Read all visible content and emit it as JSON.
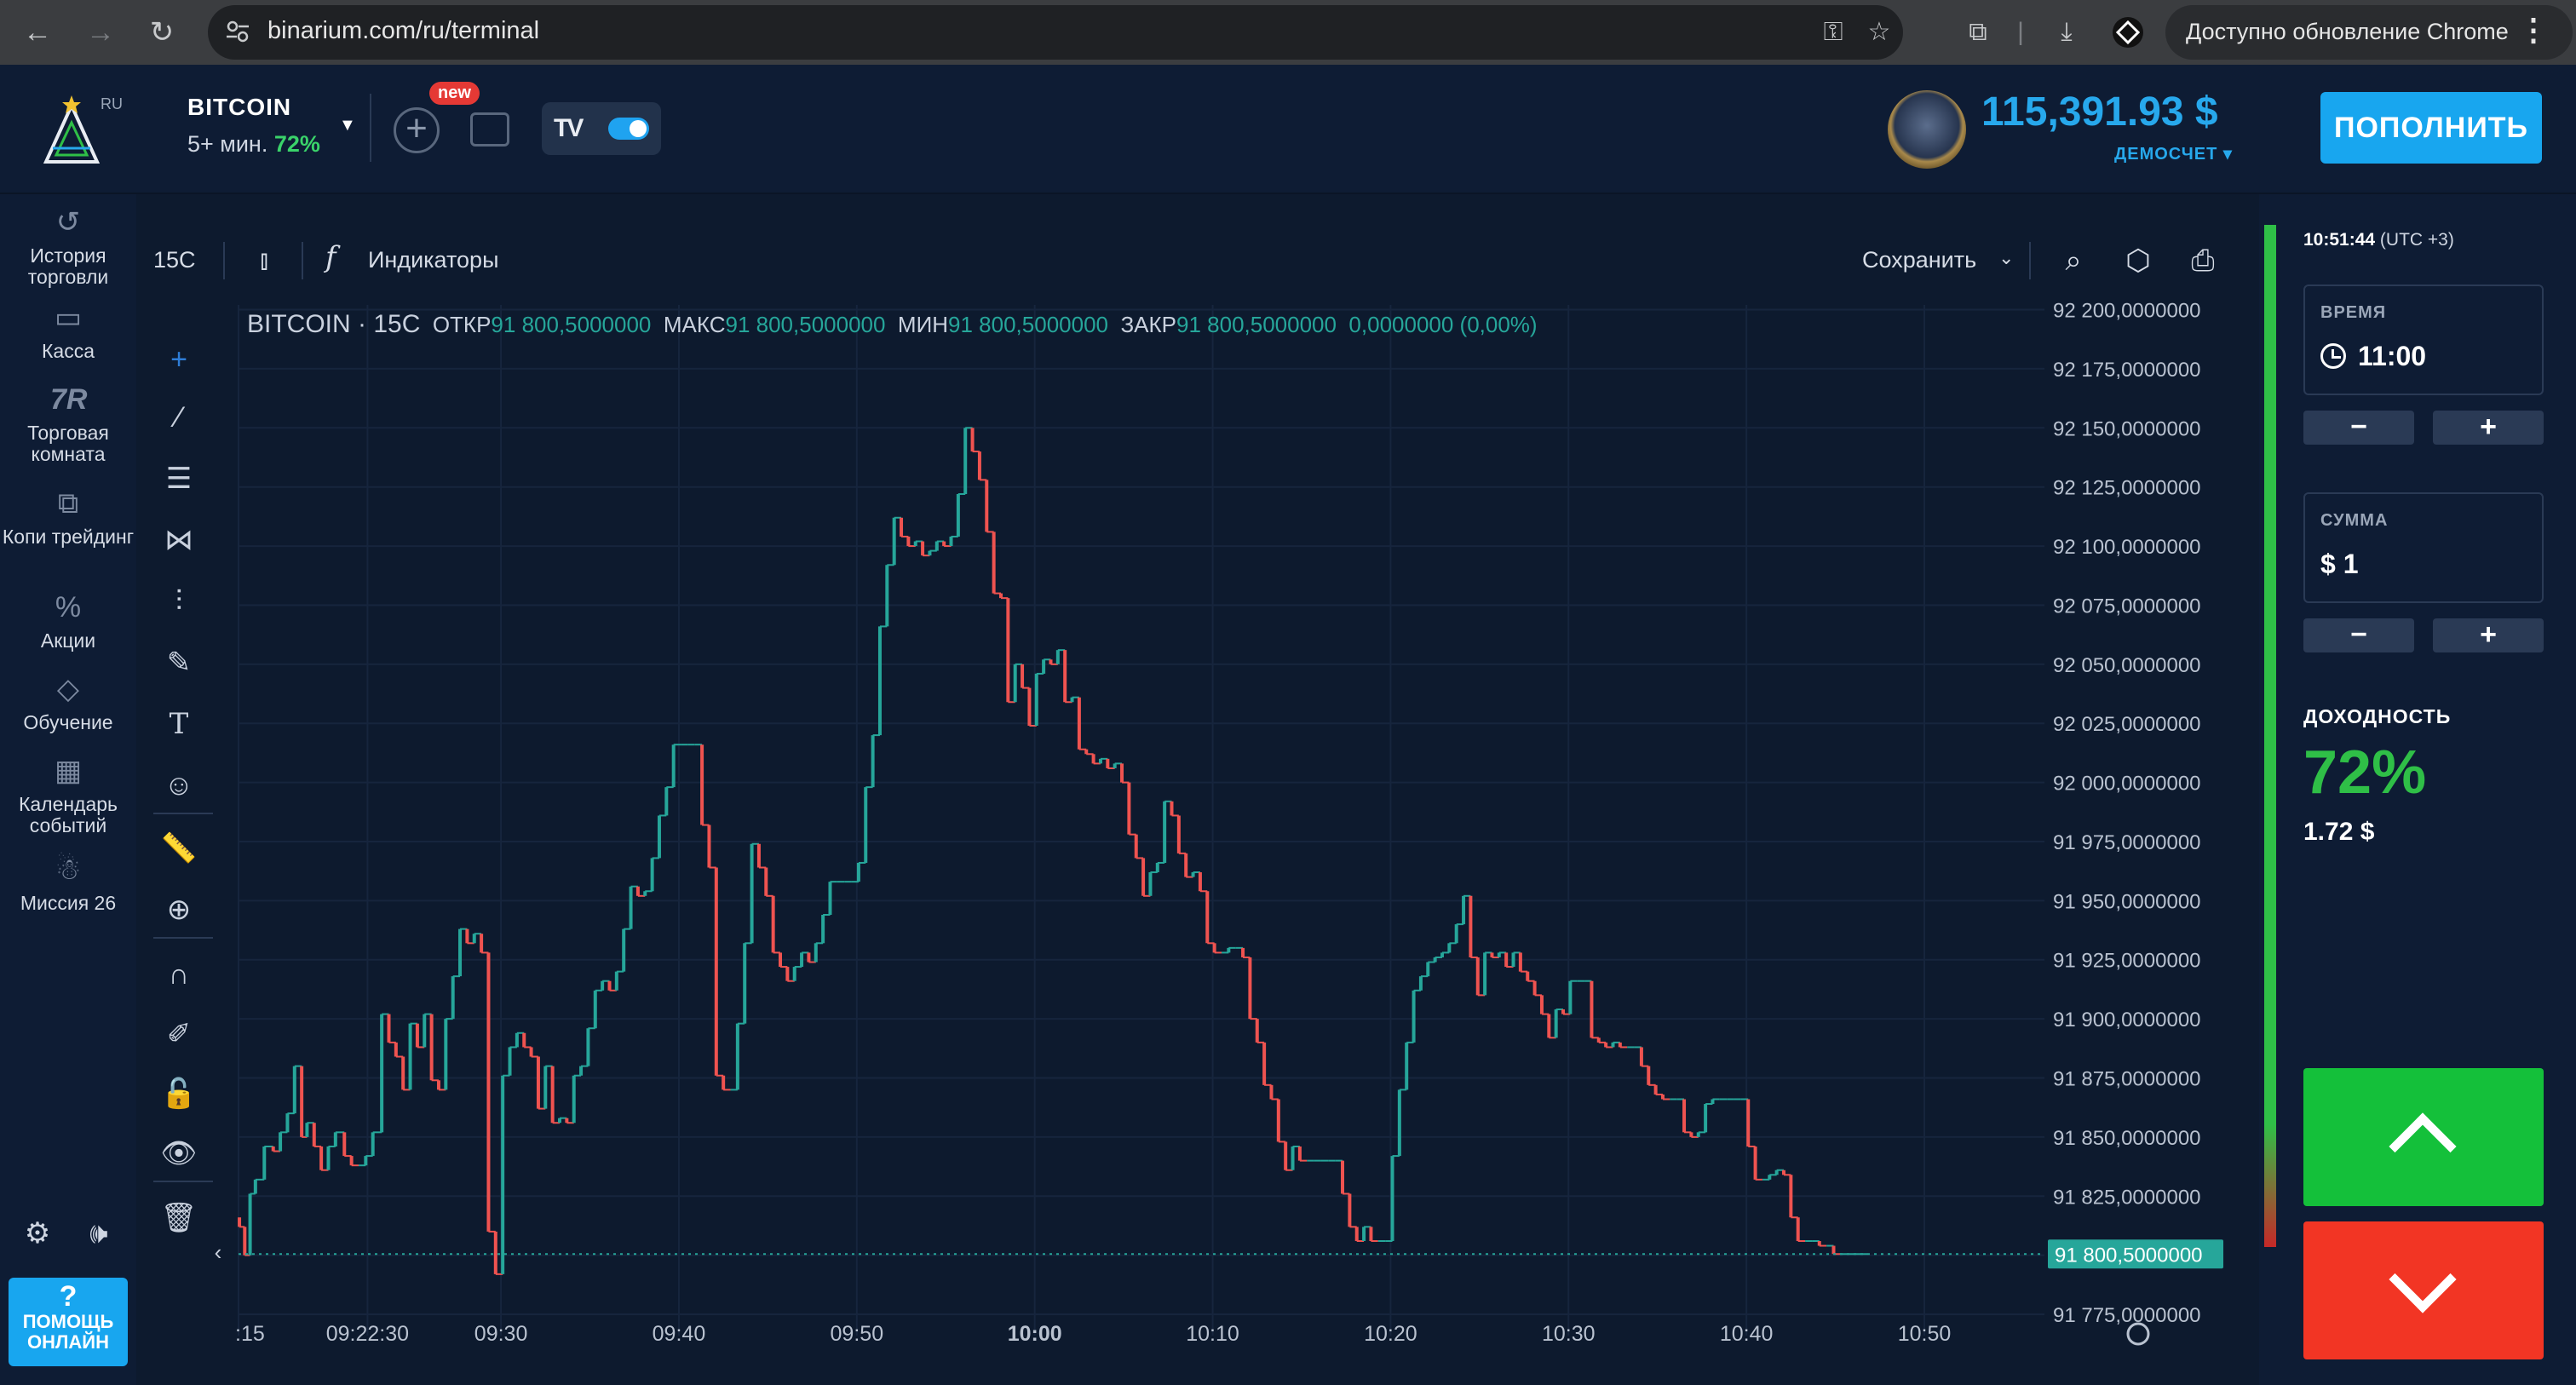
{
  "browser": {
    "url": "binarium.com/ru/terminal",
    "update_label": "Доступно обновление Chrome"
  },
  "header": {
    "lang": "RU",
    "asset_name": "BITCOIN",
    "asset_term": "5+ мин.",
    "asset_payout": "72%",
    "new_badge": "new",
    "balance": "115,391.93 $",
    "account_type": "ДЕМОСЧЕТ ▾",
    "deposit_label": "ПОПОЛНИТЬ"
  },
  "sidebar": {
    "items": [
      {
        "label": "История торговли",
        "icon": "history-icon"
      },
      {
        "label": "Касса",
        "icon": "wallet-icon"
      },
      {
        "label": "Торговая комната",
        "icon": "trading-room-icon"
      },
      {
        "label": "Копи трейдинг",
        "icon": "copy-trading-icon"
      },
      {
        "label": "Акции",
        "icon": "promo-icon"
      },
      {
        "label": "Обучение",
        "icon": "education-icon"
      },
      {
        "label": "Календарь событий",
        "icon": "calendar-icon"
      },
      {
        "label": "Миссия 26",
        "icon": "mission-icon"
      }
    ],
    "help_q": "?",
    "help_label": "ПОМОЩЬ ОНЛАЙН"
  },
  "chart_toolbar": {
    "timeframe": "15С",
    "indicators_label": "Индикаторы",
    "save_label": "Сохранить"
  },
  "legend": {
    "title": "BITCOIN · 15С",
    "open_key": "ОТКР",
    "open": "91 800,5000000",
    "high_key": "МАКС",
    "high": "91 800,5000000",
    "low_key": "МИН",
    "low": "91 800,5000000",
    "close_key": "ЗАКР",
    "close": "91 800,5000000",
    "change": "0,0000000 (0,00%)"
  },
  "chart_data": {
    "type": "candlestick",
    "title": "BITCOIN · 15С",
    "y_ticks": [
      "92 200,0000000",
      "92 175,0000000",
      "92 150,0000000",
      "92 125,0000000",
      "92 100,0000000",
      "92 075,0000000",
      "92 050,0000000",
      "92 025,0000000",
      "92 000,0000000",
      "91 975,0000000",
      "91 950,0000000",
      "91 925,0000000",
      "91 900,0000000",
      "91 875,0000000",
      "91 850,0000000",
      "91 825,0000000",
      "91 800,0000000",
      "91 775,0000000"
    ],
    "y_tick_values": [
      92200,
      92175,
      92150,
      92125,
      92100,
      92075,
      92050,
      92025,
      92000,
      91975,
      91950,
      91925,
      91900,
      91875,
      91850,
      91825,
      91800,
      91775
    ],
    "ylim": [
      91766,
      92202
    ],
    "x_ticks": [
      ":15",
      "09:22:30",
      "09:30",
      "09:40",
      "09:50",
      "10:00",
      "10:10",
      "10:20",
      "10:30",
      "10:40",
      "10:50"
    ],
    "x_tick_minutes": [
      555.25,
      562.5,
      570,
      580,
      590,
      600,
      610,
      620,
      630,
      640,
      650
    ],
    "x_tick_bold": [
      "10:00"
    ],
    "xlim_minutes": [
      555.25,
      656.75
    ],
    "current_price_label": "91 800,5000000",
    "current_price": 91800.5,
    "up_color": "#26a69a",
    "down_color": "#ef5350",
    "price_path": [
      [
        555.3,
        91816
      ],
      [
        555.6,
        91812
      ],
      [
        555.9,
        91800
      ],
      [
        556.2,
        91826
      ],
      [
        556.7,
        91832
      ],
      [
        557.2,
        91846
      ],
      [
        557.6,
        91844
      ],
      [
        558.0,
        91852
      ],
      [
        558.4,
        91860
      ],
      [
        558.8,
        91880
      ],
      [
        559.1,
        91850
      ],
      [
        559.5,
        91856
      ],
      [
        559.9,
        91846
      ],
      [
        560.3,
        91836
      ],
      [
        560.7,
        91846
      ],
      [
        561.2,
        91852
      ],
      [
        561.6,
        91842
      ],
      [
        562.0,
        91838
      ],
      [
        562.4,
        91838
      ],
      [
        562.8,
        91842
      ],
      [
        563.3,
        91852
      ],
      [
        563.7,
        91902
      ],
      [
        564.1,
        91890
      ],
      [
        564.5,
        91884
      ],
      [
        564.9,
        91870
      ],
      [
        565.3,
        91898
      ],
      [
        565.7,
        91888
      ],
      [
        566.1,
        91902
      ],
      [
        566.5,
        91874
      ],
      [
        566.9,
        91870
      ],
      [
        567.3,
        91900
      ],
      [
        567.7,
        91918
      ],
      [
        568.1,
        91938
      ],
      [
        568.5,
        91932
      ],
      [
        568.9,
        91936
      ],
      [
        569.3,
        91928
      ],
      [
        569.7,
        91810
      ],
      [
        570.1,
        91792
      ],
      [
        570.5,
        91876
      ],
      [
        570.9,
        91888
      ],
      [
        571.3,
        91894
      ],
      [
        571.7,
        91888
      ],
      [
        572.1,
        91884
      ],
      [
        572.5,
        91862
      ],
      [
        572.9,
        91880
      ],
      [
        573.3,
        91856
      ],
      [
        573.7,
        91858
      ],
      [
        574.1,
        91856
      ],
      [
        574.5,
        91876
      ],
      [
        574.9,
        91880
      ],
      [
        575.3,
        91896
      ],
      [
        575.7,
        91912
      ],
      [
        576.1,
        91916
      ],
      [
        576.5,
        91912
      ],
      [
        576.9,
        91920
      ],
      [
        577.3,
        91938
      ],
      [
        577.7,
        91956
      ],
      [
        578.1,
        91952
      ],
      [
        578.5,
        91954
      ],
      [
        578.9,
        91968
      ],
      [
        579.3,
        91986
      ],
      [
        579.7,
        91998
      ],
      [
        580.1,
        92016
      ],
      [
        580.5,
        92016
      ],
      [
        580.9,
        92016
      ],
      [
        581.3,
        92016
      ],
      [
        581.7,
        91982
      ],
      [
        582.1,
        91964
      ],
      [
        582.5,
        91876
      ],
      [
        582.9,
        91870
      ],
      [
        583.3,
        91870
      ],
      [
        583.7,
        91898
      ],
      [
        584.1,
        91932
      ],
      [
        584.5,
        91974
      ],
      [
        584.9,
        91964
      ],
      [
        585.3,
        91952
      ],
      [
        585.7,
        91928
      ],
      [
        586.1,
        91922
      ],
      [
        586.5,
        91916
      ],
      [
        586.9,
        91922
      ],
      [
        587.3,
        91928
      ],
      [
        587.7,
        91924
      ],
      [
        588.1,
        91932
      ],
      [
        588.5,
        91944
      ],
      [
        588.9,
        91958
      ],
      [
        589.3,
        91958
      ],
      [
        589.7,
        91958
      ],
      [
        590.1,
        91958
      ],
      [
        590.5,
        91966
      ],
      [
        590.9,
        91998
      ],
      [
        591.3,
        92020
      ],
      [
        591.7,
        92066
      ],
      [
        592.1,
        92092
      ],
      [
        592.5,
        92112
      ],
      [
        592.9,
        92104
      ],
      [
        593.3,
        92100
      ],
      [
        593.7,
        92102
      ],
      [
        594.1,
        92096
      ],
      [
        594.5,
        92098
      ],
      [
        594.9,
        92102
      ],
      [
        595.3,
        92100
      ],
      [
        595.7,
        92104
      ],
      [
        596.1,
        92122
      ],
      [
        596.5,
        92150
      ],
      [
        596.9,
        92140
      ],
      [
        597.3,
        92128
      ],
      [
        597.7,
        92106
      ],
      [
        598.1,
        92080
      ],
      [
        598.5,
        92078
      ],
      [
        598.9,
        92034
      ],
      [
        599.3,
        92050
      ],
      [
        599.7,
        92040
      ],
      [
        600.1,
        92024
      ],
      [
        600.5,
        92046
      ],
      [
        600.9,
        92052
      ],
      [
        601.3,
        92050
      ],
      [
        601.7,
        92056
      ],
      [
        602.1,
        92034
      ],
      [
        602.5,
        92036
      ],
      [
        602.9,
        92014
      ],
      [
        603.3,
        92012
      ],
      [
        603.7,
        92008
      ],
      [
        604.1,
        92010
      ],
      [
        604.5,
        92006
      ],
      [
        604.9,
        92008
      ],
      [
        605.3,
        92000
      ],
      [
        605.7,
        91978
      ],
      [
        606.1,
        91968
      ],
      [
        606.5,
        91952
      ],
      [
        606.9,
        91962
      ],
      [
        607.3,
        91966
      ],
      [
        607.7,
        91992
      ],
      [
        608.1,
        91986
      ],
      [
        608.5,
        91970
      ],
      [
        608.9,
        91960
      ],
      [
        609.3,
        91962
      ],
      [
        609.7,
        91954
      ],
      [
        610.1,
        91932
      ],
      [
        610.5,
        91928
      ],
      [
        610.9,
        91928
      ],
      [
        611.3,
        91930
      ],
      [
        611.7,
        91930
      ],
      [
        612.1,
        91926
      ],
      [
        612.5,
        91900
      ],
      [
        612.9,
        91890
      ],
      [
        613.3,
        91872
      ],
      [
        613.7,
        91866
      ],
      [
        614.1,
        91848
      ],
      [
        614.5,
        91836
      ],
      [
        614.9,
        91846
      ],
      [
        615.3,
        91840
      ],
      [
        615.7,
        91840
      ],
      [
        616.1,
        91840
      ],
      [
        616.5,
        91840
      ],
      [
        616.9,
        91840
      ],
      [
        617.3,
        91840
      ],
      [
        617.7,
        91826
      ],
      [
        618.1,
        91812
      ],
      [
        618.5,
        91806
      ],
      [
        618.9,
        91812
      ],
      [
        619.3,
        91806
      ],
      [
        619.7,
        91806
      ],
      [
        620.1,
        91806
      ],
      [
        620.5,
        91842
      ],
      [
        620.9,
        91870
      ],
      [
        621.3,
        91890
      ],
      [
        621.7,
        91912
      ],
      [
        622.1,
        91918
      ],
      [
        622.5,
        91924
      ],
      [
        622.9,
        91926
      ],
      [
        623.3,
        91928
      ],
      [
        623.7,
        91932
      ],
      [
        624.1,
        91940
      ],
      [
        624.5,
        91952
      ],
      [
        624.9,
        91926
      ],
      [
        625.3,
        91910
      ],
      [
        625.7,
        91928
      ],
      [
        626.1,
        91926
      ],
      [
        626.5,
        91928
      ],
      [
        626.9,
        91922
      ],
      [
        627.3,
        91928
      ],
      [
        627.7,
        91920
      ],
      [
        628.1,
        91916
      ],
      [
        628.5,
        91910
      ],
      [
        628.9,
        91902
      ],
      [
        629.3,
        91892
      ],
      [
        629.7,
        91904
      ],
      [
        630.1,
        91902
      ],
      [
        630.5,
        91916
      ],
      [
        630.9,
        91916
      ],
      [
        631.3,
        91916
      ],
      [
        631.7,
        91892
      ],
      [
        632.1,
        91890
      ],
      [
        632.5,
        91888
      ],
      [
        632.9,
        91890
      ],
      [
        633.3,
        91888
      ],
      [
        633.7,
        91888
      ],
      [
        634.1,
        91888
      ],
      [
        634.5,
        91880
      ],
      [
        634.9,
        91872
      ],
      [
        635.3,
        91868
      ],
      [
        635.7,
        91866
      ],
      [
        636.1,
        91866
      ],
      [
        636.5,
        91866
      ],
      [
        636.9,
        91852
      ],
      [
        637.3,
        91850
      ],
      [
        637.7,
        91852
      ],
      [
        638.1,
        91864
      ],
      [
        638.5,
        91866
      ],
      [
        638.9,
        91866
      ],
      [
        639.3,
        91866
      ],
      [
        639.7,
        91866
      ],
      [
        640.1,
        91866
      ],
      [
        640.5,
        91846
      ],
      [
        640.9,
        91832
      ],
      [
        641.3,
        91832
      ],
      [
        641.7,
        91834
      ],
      [
        642.1,
        91836
      ],
      [
        642.5,
        91834
      ],
      [
        642.9,
        91816
      ],
      [
        643.3,
        91806
      ],
      [
        643.7,
        91806
      ],
      [
        644.1,
        91806
      ],
      [
        644.5,
        91804
      ],
      [
        644.9,
        91804
      ],
      [
        645.3,
        91800.5
      ],
      [
        645.7,
        91800.5
      ],
      [
        646.1,
        91800.5
      ],
      [
        646.5,
        91800.5
      ],
      [
        646.8,
        91800.5
      ]
    ],
    "grid": true
  },
  "right_panel": {
    "current_time": "10:51:44",
    "timezone": "(UTC +3)",
    "time_label": "ВРЕМЯ",
    "time_value": "11:00",
    "amount_label": "СУММА",
    "amount_value": "$ 1",
    "minus": "−",
    "plus": "+",
    "yield_label": "ДОХОДНОСТЬ",
    "yield_pct": "72%",
    "yield_amount": "1.72 $"
  }
}
